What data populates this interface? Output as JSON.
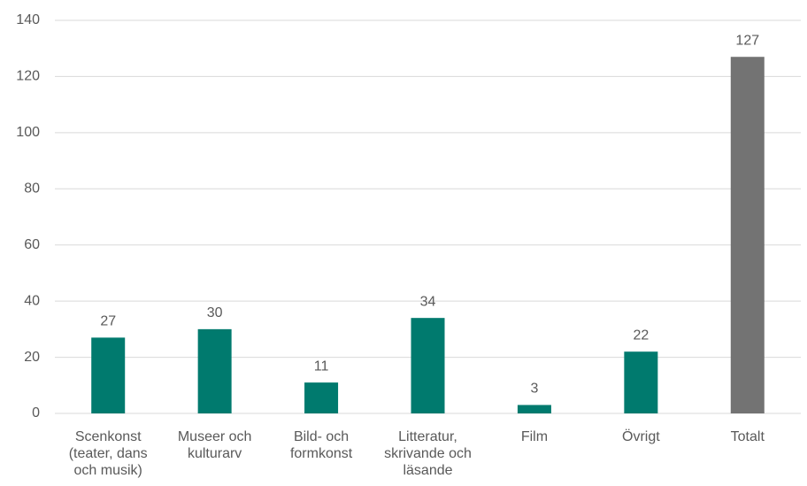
{
  "chart_data": {
    "type": "bar",
    "categories": [
      "Scenkonst (teater, dans och musik)",
      "Museer och kulturarv",
      "Bild- och formkonst",
      "Litteratur, skrivande och läsande",
      "Film",
      "Övrigt",
      "Totalt"
    ],
    "values": [
      27,
      30,
      11,
      34,
      3,
      22,
      127
    ],
    "colors": [
      "#007a6e",
      "#007a6e",
      "#007a6e",
      "#007a6e",
      "#007a6e",
      "#007a6e",
      "#737373"
    ],
    "ylim": [
      0,
      140
    ],
    "yticks": [
      0,
      20,
      40,
      60,
      80,
      100,
      120,
      140
    ],
    "grid": true
  }
}
